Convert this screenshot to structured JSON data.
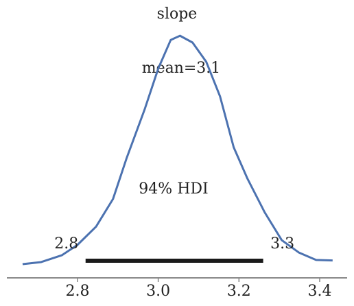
{
  "chart_data": {
    "type": "density",
    "title": "slope",
    "x": [
      2.664,
      2.71,
      2.761,
      2.8,
      2.846,
      2.888,
      2.922,
      2.966,
      3.0,
      3.031,
      3.054,
      3.085,
      3.119,
      3.153,
      3.187,
      3.221,
      3.264,
      3.306,
      3.349,
      3.391,
      3.432
    ],
    "values": [
      0,
      0.04,
      0.17,
      0.37,
      0.72,
      1.25,
      2.04,
      2.96,
      3.75,
      4.3,
      4.38,
      4.25,
      3.88,
      3.22,
      2.24,
      1.64,
      0.99,
      0.46,
      0.22,
      0.08,
      0.07
    ],
    "color": "#4c72b0",
    "xlim": [
      2.625,
      3.468
    ],
    "ylim": [
      0,
      4.6
    ],
    "xticks": [
      2.8,
      {
        "value": 3,
        "label": "3.0"
      },
      3.2,
      3.4
    ],
    "mean_label": "mean=3.1",
    "hdi": {
      "label": "94% HDI",
      "values": [
        2.82,
        3.26
      ],
      "value_labels": [
        "2.8",
        "3.3"
      ],
      "color": "#1a1a1a"
    }
  }
}
